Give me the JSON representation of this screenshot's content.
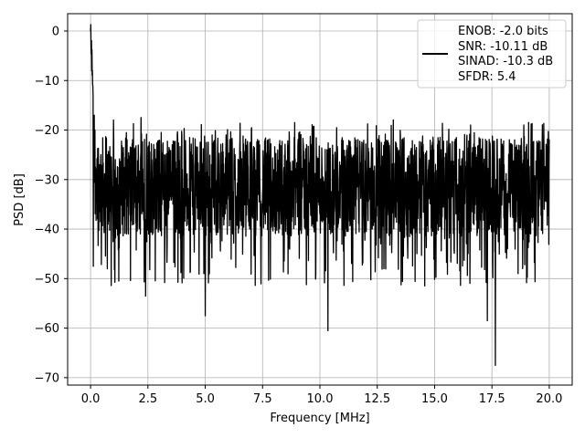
{
  "chart_data": {
    "type": "line",
    "title": "",
    "xlabel": "Frequency [MHz]",
    "ylabel": "PSD [dB]",
    "xlim": [
      -1.0,
      21.0
    ],
    "ylim": [
      -71.5,
      3.5
    ],
    "xticks": [
      0.0,
      2.5,
      5.0,
      7.5,
      10.0,
      12.5,
      15.0,
      17.5,
      20.0
    ],
    "xtick_labels": [
      "0.0",
      "2.5",
      "5.0",
      "7.5",
      "10.0",
      "12.5",
      "15.0",
      "17.5",
      "20.0"
    ],
    "yticks": [
      0,
      -10,
      -20,
      -30,
      -40,
      -50,
      -60,
      -70
    ],
    "ytick_labels": [
      "0",
      "−10",
      "−20",
      "−30",
      "−40",
      "−50",
      "−60",
      "−70"
    ],
    "grid": true,
    "legend_position": "top-right",
    "series": [
      {
        "name": "ENOB: -2.0 bits",
        "color": "#000000",
        "x_range": [
          0.0,
          20.0
        ],
        "description": "noise-like spectrum: 0 dB spike at DC, decaying to a noise floor around -30 dB with envelope roughly -18 to -50 dB",
        "notable_points": [
          {
            "x": 0.0,
            "y": 0.0
          },
          {
            "x": 0.05,
            "y": -8
          },
          {
            "x": 0.12,
            "y": -47.5
          },
          {
            "x": 2.4,
            "y": -53.5
          },
          {
            "x": 5.0,
            "y": -57.5
          },
          {
            "x": 10.35,
            "y": -60.5
          },
          {
            "x": 17.65,
            "y": -67.5
          },
          {
            "x": 17.3,
            "y": -58.5
          },
          {
            "x": 1.0,
            "y": -18
          },
          {
            "x": 2.2,
            "y": -17.5
          },
          {
            "x": 8.9,
            "y": -18.5
          },
          {
            "x": 13.2,
            "y": -18.0
          },
          {
            "x": 19.1,
            "y": -18.5
          }
        ]
      }
    ],
    "legend_lines": [
      "ENOB: -2.0 bits",
      "SNR: -10.11 dB",
      "SINAD: -10.3 dB",
      "SFDR: 5.4"
    ],
    "colors": {
      "line": "#000000",
      "grid": "#b0b0b0",
      "axes": "#000000",
      "background": "#ffffff"
    }
  }
}
